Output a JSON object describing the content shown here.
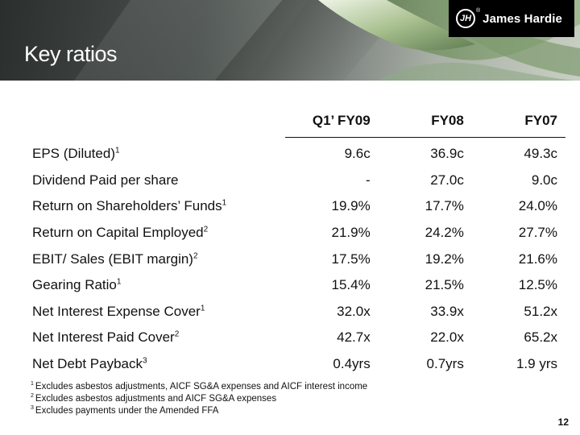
{
  "header": {
    "title": "Key ratios",
    "brand": "James Hardie",
    "brand_mark": "JH",
    "registered": "®"
  },
  "table": {
    "columns": [
      "Q1’ FY09",
      "FY08",
      "FY07"
    ],
    "rows": [
      {
        "label": "EPS (Diluted)",
        "note": "1",
        "values": [
          "9.6c",
          "36.9c",
          "49.3c"
        ]
      },
      {
        "label": "Dividend Paid per share",
        "note": "",
        "values": [
          "-",
          "27.0c",
          "9.0c"
        ]
      },
      {
        "label": "Return on Shareholders’ Funds",
        "note": "1",
        "values": [
          "19.9%",
          "17.7%",
          "24.0%"
        ]
      },
      {
        "label": "Return on Capital Employed",
        "note": "2",
        "values": [
          "21.9%",
          "24.2%",
          "27.7%"
        ]
      },
      {
        "label": "EBIT/ Sales (EBIT margin)",
        "note": "2",
        "values": [
          "17.5%",
          "19.2%",
          "21.6%"
        ]
      },
      {
        "label": "Gearing Ratio",
        "note": "1",
        "values": [
          "15.4%",
          "21.5%",
          "12.5%"
        ]
      },
      {
        "label": "Net Interest Expense Cover",
        "note": "1",
        "values": [
          "32.0x",
          "33.9x",
          "51.2x"
        ]
      },
      {
        "label": "Net Interest Paid Cover",
        "note": "2",
        "values": [
          "42.7x",
          "22.0x",
          "65.2x"
        ]
      },
      {
        "label": "Net Debt Payback",
        "note": "3",
        "values": [
          "0.4yrs",
          "0.7yrs",
          "1.9 yrs"
        ]
      }
    ]
  },
  "footnotes": [
    {
      "mark": "1",
      "text": "Excludes asbestos adjustments, AICF SG&A expenses and AICF interest income"
    },
    {
      "mark": "2",
      "text": "Excludes asbestos adjustments and AICF SG&A expenses"
    },
    {
      "mark": "3",
      "text": "Excludes payments under the Amended FFA"
    }
  ],
  "page_number": "12",
  "colors": {
    "header_dark": "#2a2f2d",
    "leaf_green": "#6e8f63",
    "logo_bg": "#000000"
  }
}
